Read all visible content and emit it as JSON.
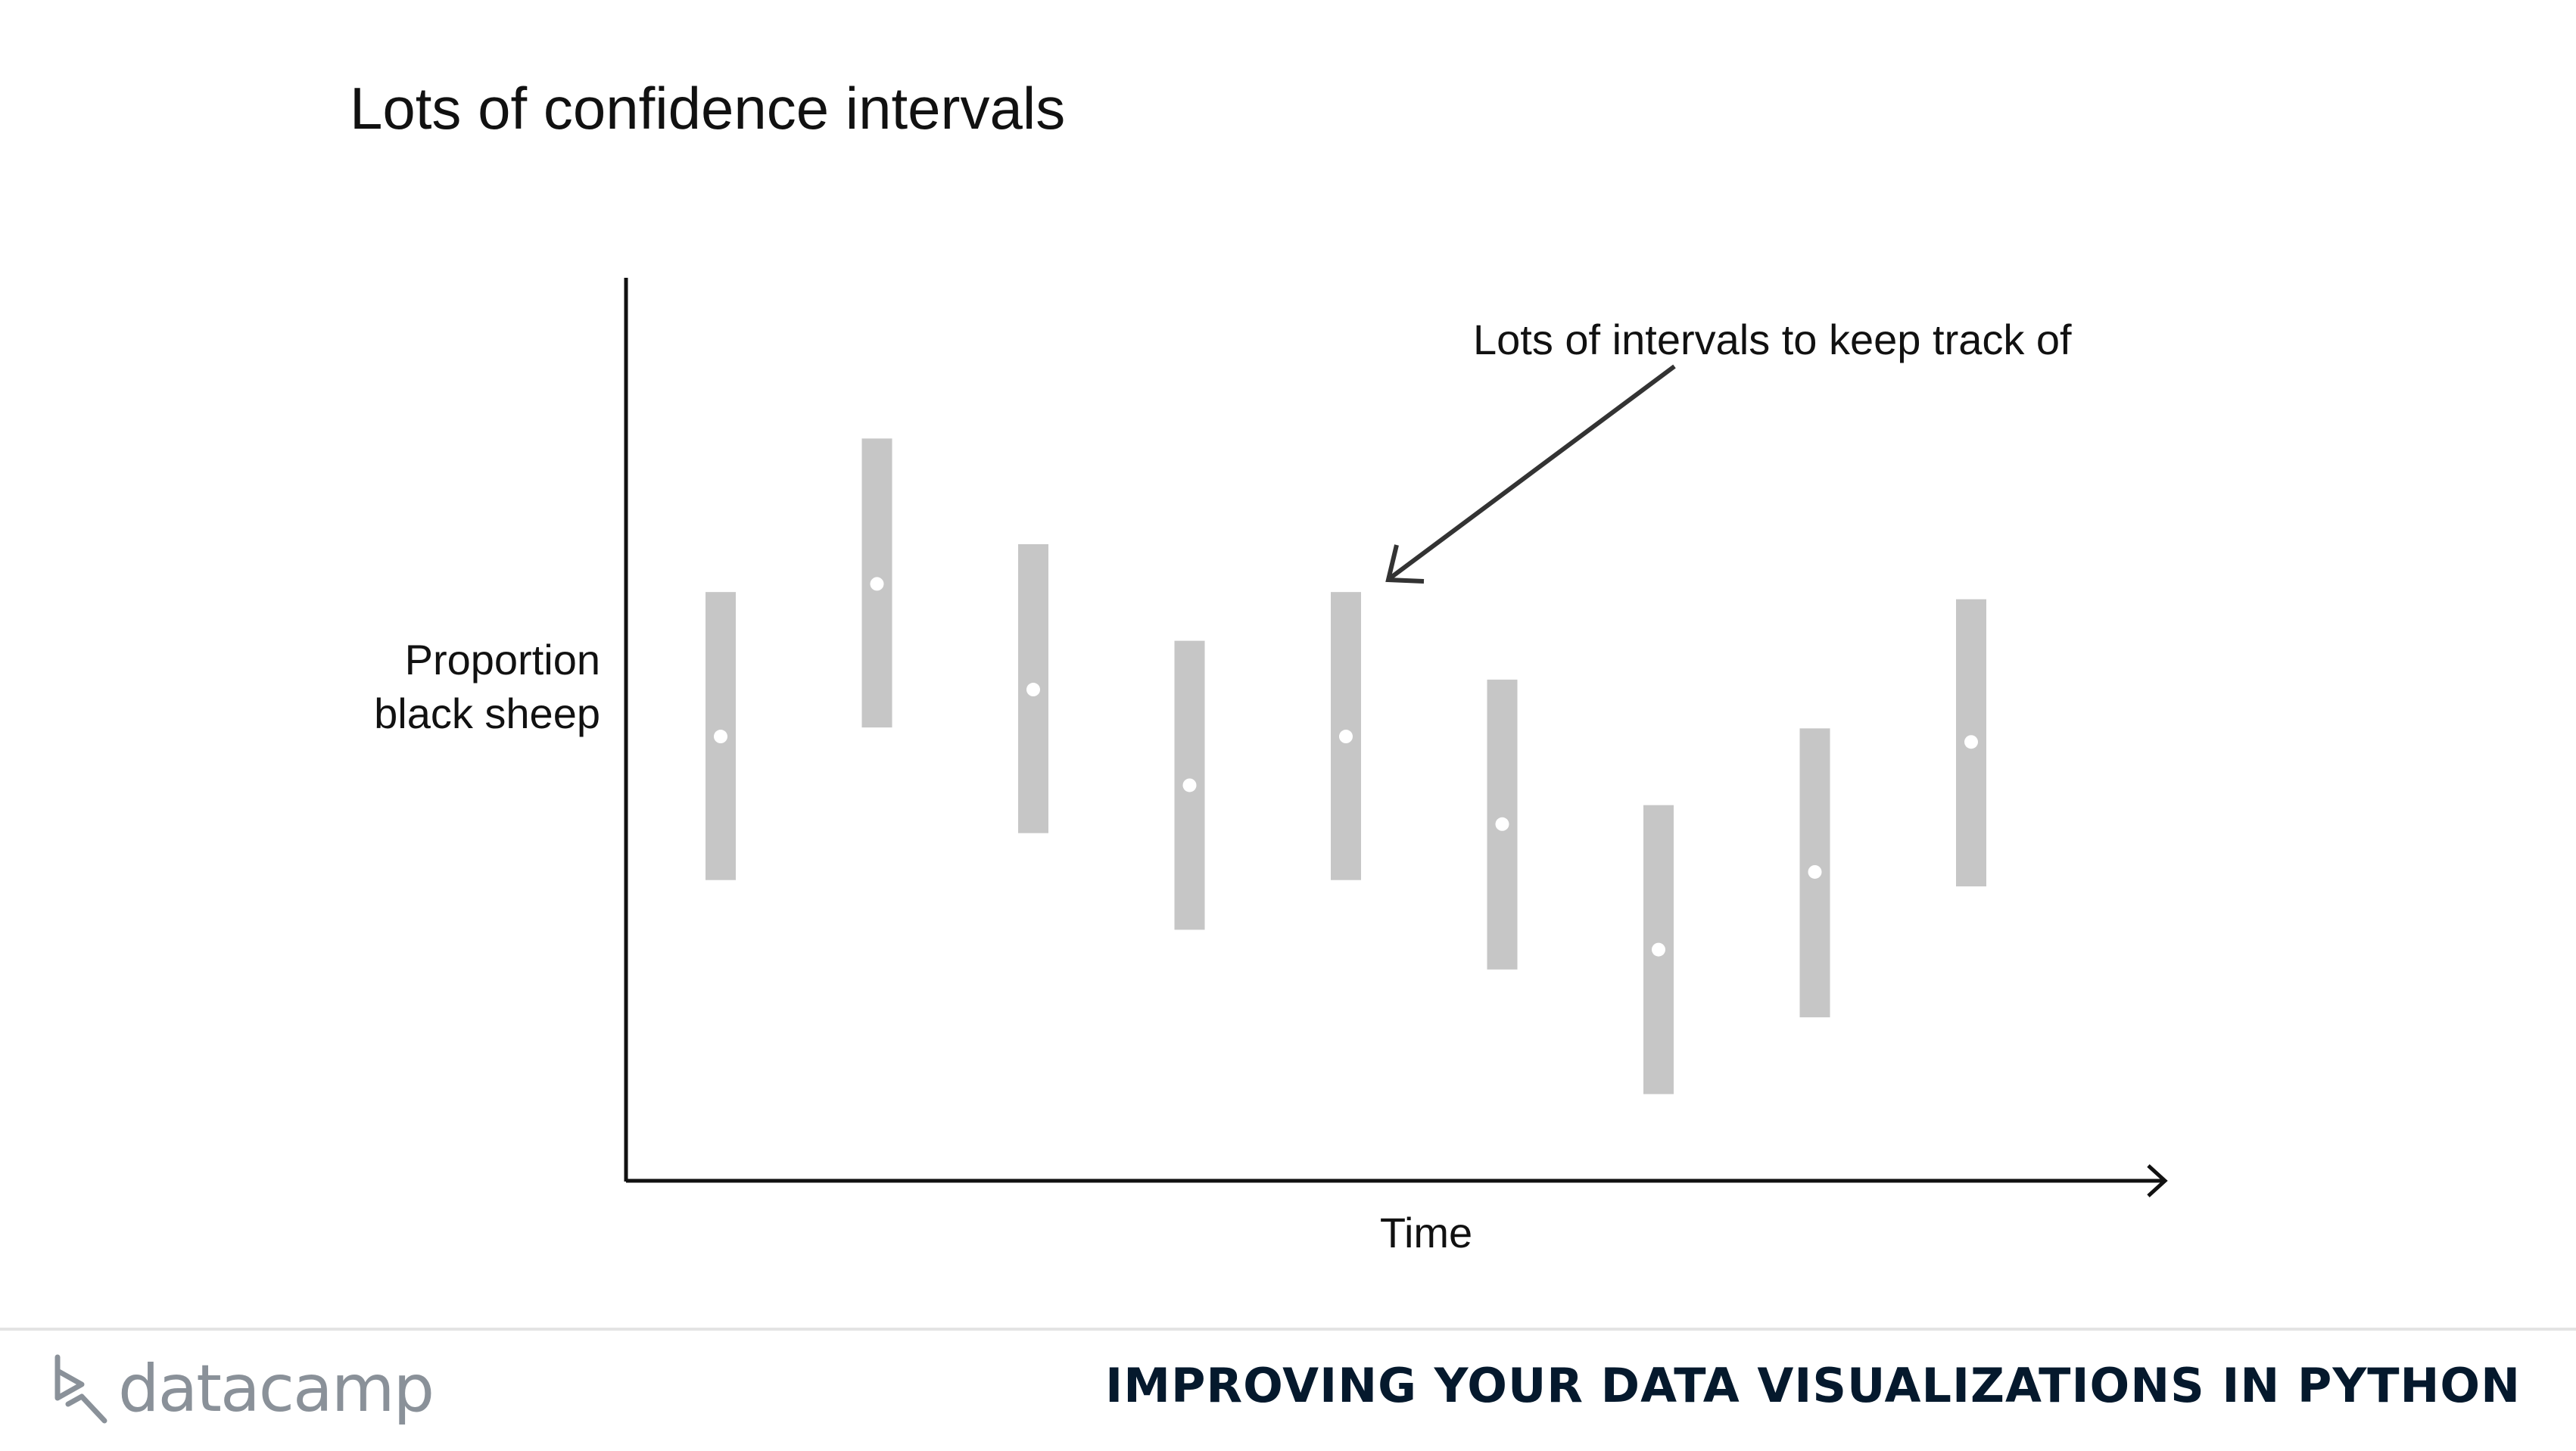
{
  "slide": {
    "title": "Lots of confidence intervals"
  },
  "footer": {
    "logo_text": "datacamp",
    "course_name": "IMPROVING YOUR DATA VISUALIZATIONS IN PYTHON"
  },
  "colors": {
    "interval": "#c6c6c6",
    "point": "#ffffff",
    "axis": "#111111",
    "annotation_arrow": "#333333",
    "footer_text": "#05192d",
    "logo": "#8a9199"
  },
  "chart_data": {
    "type": "errorbar",
    "xlabel": "Time",
    "ylabel": "Proportion black sheep",
    "ylabel_lines": [
      "Proportion",
      "black sheep"
    ],
    "axis_ticks": false,
    "grid": false,
    "x_axis_arrow": true,
    "ylim": [
      0,
      100
    ],
    "x": [
      1,
      2,
      3,
      4,
      5,
      6,
      7,
      8,
      9
    ],
    "series": [
      {
        "estimate": [
          49.2,
          66.1,
          54.4,
          43.8,
          49.2,
          39.5,
          25.6,
          34.2,
          48.6
        ],
        "lower": [
          33.3,
          50.2,
          38.5,
          27.8,
          33.3,
          23.4,
          9.6,
          18.1,
          32.6
        ],
        "upper": [
          65.2,
          82.2,
          70.5,
          59.8,
          65.2,
          55.5,
          41.6,
          50.1,
          64.4
        ]
      }
    ],
    "annotation": {
      "text": "Lots of intervals to keep track of",
      "points_to_index": 4
    }
  }
}
